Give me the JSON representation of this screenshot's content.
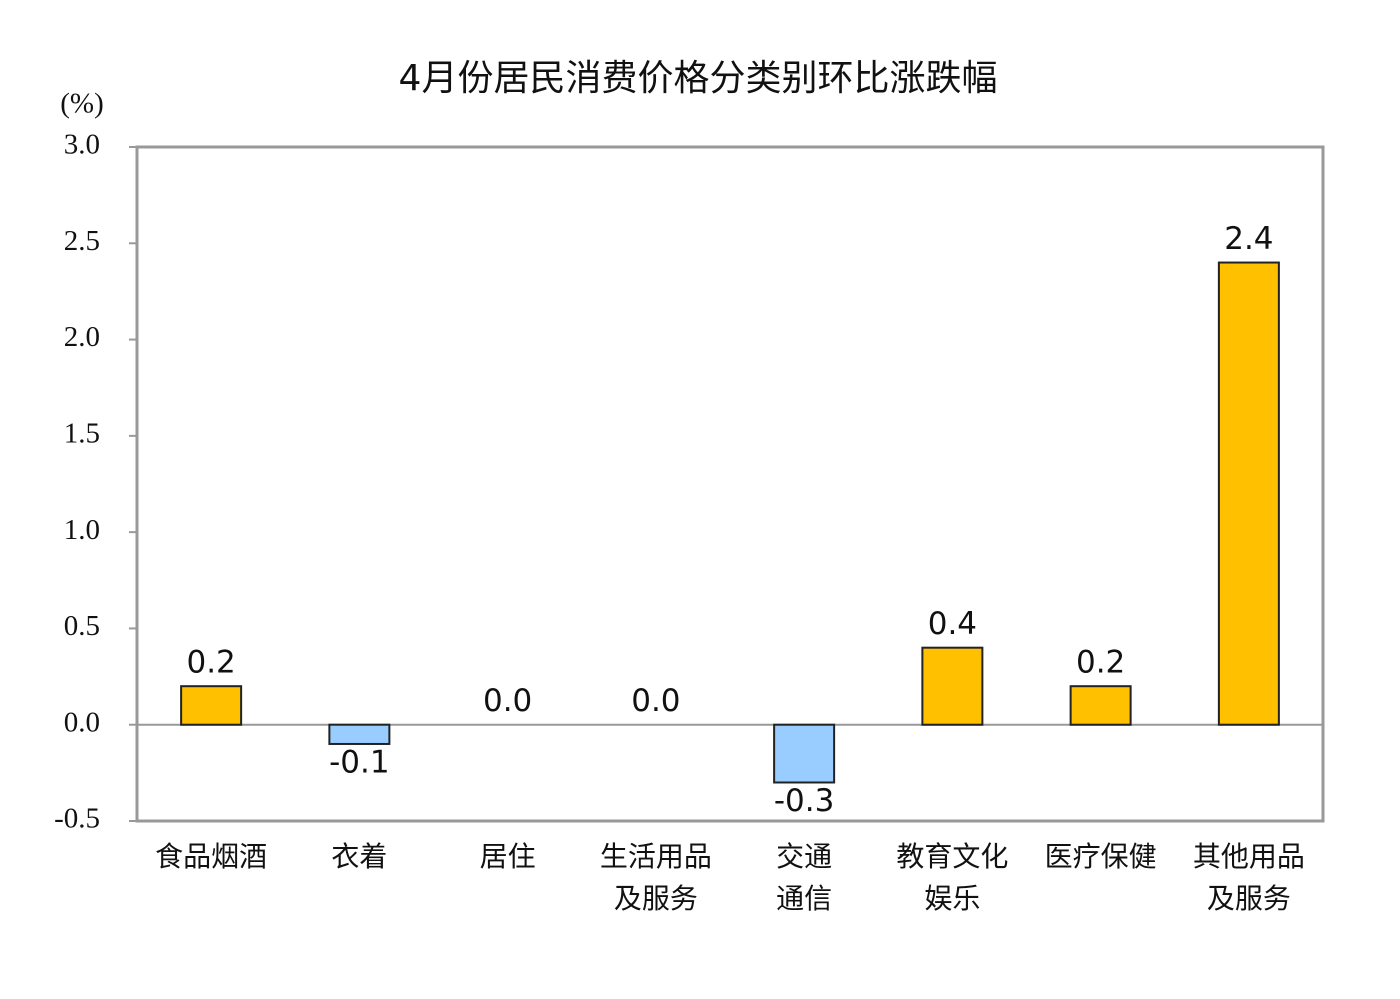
{
  "chart_data": {
    "type": "bar",
    "title": "4月份居民消费价格分类别环比涨跌幅",
    "y_label": "(%)",
    "categories": [
      "食品烟酒",
      "衣着",
      "居住",
      "生活用品\n及服务",
      "交通\n通信",
      "教育文化\n娱乐",
      "医疗保健",
      "其他用品\n及服务"
    ],
    "values": [
      0.2,
      -0.1,
      0,
      0,
      -0.3,
      0.4,
      0.2,
      2.4
    ],
    "value_labels": [
      "0.2",
      "-0.1",
      "0.0",
      "0.0",
      "-0.3",
      "0.4",
      "0.2",
      "2.4"
    ],
    "color": "#FFC000",
    "negative_color": "#99CCFF",
    "ylim": [
      -0.5,
      3.0
    ],
    "yticks": [
      {
        "value": -0.5,
        "label": "-0.5"
      },
      {
        "value": 0,
        "label": "0.0"
      },
      {
        "value": 0.5,
        "label": "0.5"
      },
      {
        "value": 1,
        "label": "1.0"
      },
      {
        "value": 1.5,
        "label": "1.5"
      },
      {
        "value": 2,
        "label": "2.0"
      },
      {
        "value": 2.5,
        "label": "2.5"
      },
      {
        "value": 3,
        "label": "3.0"
      }
    ],
    "grid": false
  }
}
